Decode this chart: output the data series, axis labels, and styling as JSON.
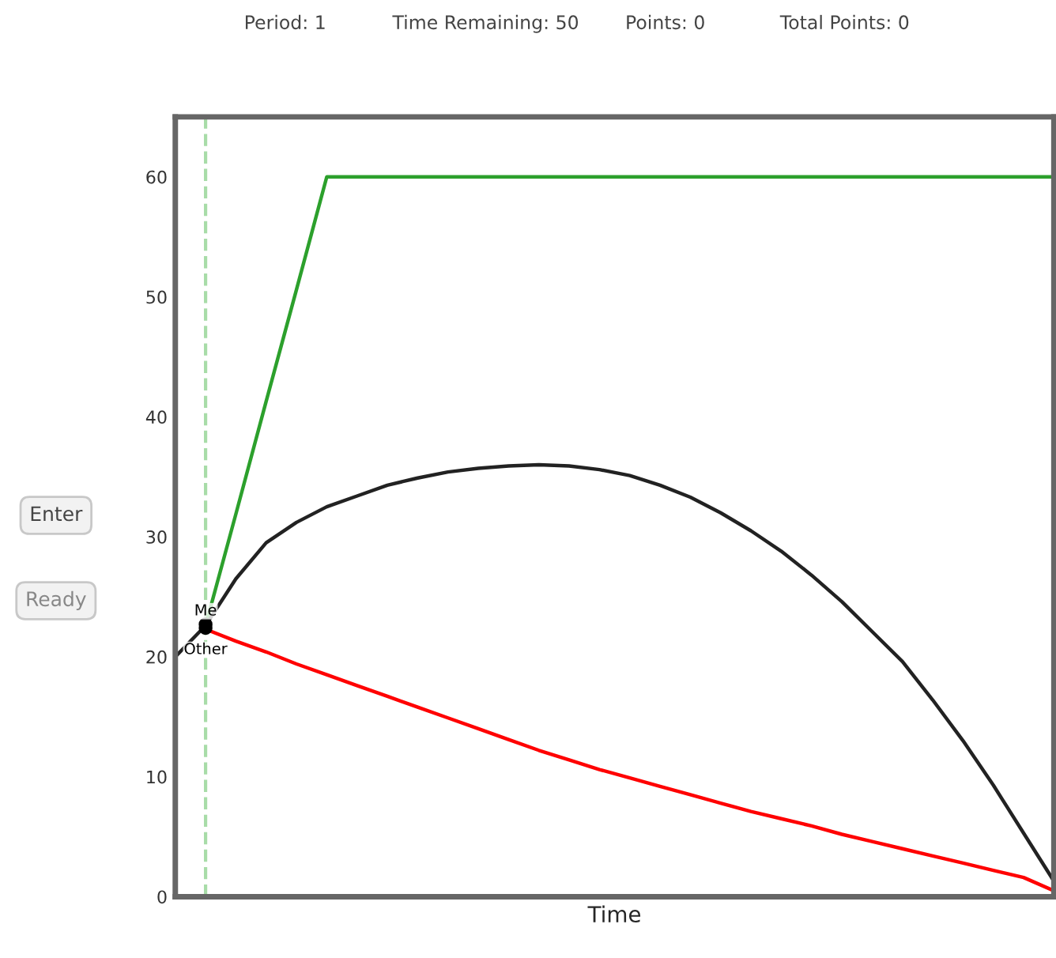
{
  "chart_data": {
    "type": "line",
    "xlabel": "Time",
    "categories": [
      null,
      null,
      null,
      null,
      null,
      null,
      null,
      null,
      null,
      null,
      null,
      null,
      null,
      null,
      null,
      null,
      null,
      null,
      null,
      null,
      null,
      null,
      null,
      null,
      null,
      null,
      null,
      null,
      null,
      null
    ],
    "series": [
      {
        "color": "#2ca02c",
        "values": [
          null,
          22.6,
          31.9,
          41.3,
          50.6,
          60,
          60,
          60,
          60,
          60,
          60,
          60,
          60,
          60,
          60,
          60,
          60,
          60,
          60,
          60,
          60,
          60,
          60,
          60,
          60,
          60,
          60,
          60,
          60,
          60
        ]
      },
      {
        "color": "#ff0000",
        "values": [
          null,
          22.3,
          21.3,
          20.4,
          19.4,
          18.5,
          17.6,
          16.7,
          15.8,
          14.9,
          14.0,
          13.1,
          12.2,
          11.4,
          10.6,
          9.9,
          9.2,
          8.5,
          7.8,
          7.1,
          6.5,
          5.9,
          5.2,
          4.6,
          4.0,
          3.4,
          2.8,
          2.2,
          1.6,
          0.5
        ]
      },
      {
        "color": "#222222",
        "values": [
          20.0,
          22.6,
          26.5,
          29.5,
          31.2,
          32.5,
          33.4,
          34.3,
          34.9,
          35.4,
          35.7,
          35.9,
          36.0,
          35.9,
          35.6,
          35.1,
          34.3,
          33.3,
          32.0,
          30.5,
          28.8,
          26.8,
          24.6,
          22.1,
          19.6,
          16.4,
          13.0,
          9.3,
          5.3,
          1.3
        ]
      },
      {
        "type": "scatter",
        "name": "Me",
        "color": "#000000",
        "marker": "circle",
        "values": [
          null,
          22.7,
          null,
          null,
          null,
          null,
          null,
          null,
          null,
          null,
          null,
          null,
          null,
          null,
          null,
          null,
          null,
          null,
          null,
          null,
          null,
          null,
          null,
          null,
          null,
          null,
          null,
          null,
          null,
          null
        ]
      },
      {
        "type": "scatter",
        "name": "Other",
        "color": "#000000",
        "marker": "circle",
        "values": [
          null,
          22.4,
          null,
          null,
          null,
          null,
          null,
          null,
          null,
          null,
          null,
          null,
          null,
          null,
          null,
          null,
          null,
          null,
          null,
          null,
          null,
          null,
          null,
          null,
          null,
          null,
          null,
          null,
          null,
          null
        ]
      }
    ],
    "ylim": [
      0,
      65
    ],
    "yticks": [
      0,
      10,
      20,
      30,
      40,
      50,
      60
    ],
    "tick_labels": "y",
    "grid": false,
    "legend": false,
    "marker": "none",
    "line_style": "solid",
    "annotations": [
      "Period: 1",
      "Time Remaining: 50",
      "Points: 0",
      "Total Points: 0",
      "Enter",
      "Ready"
    ]
  }
}
